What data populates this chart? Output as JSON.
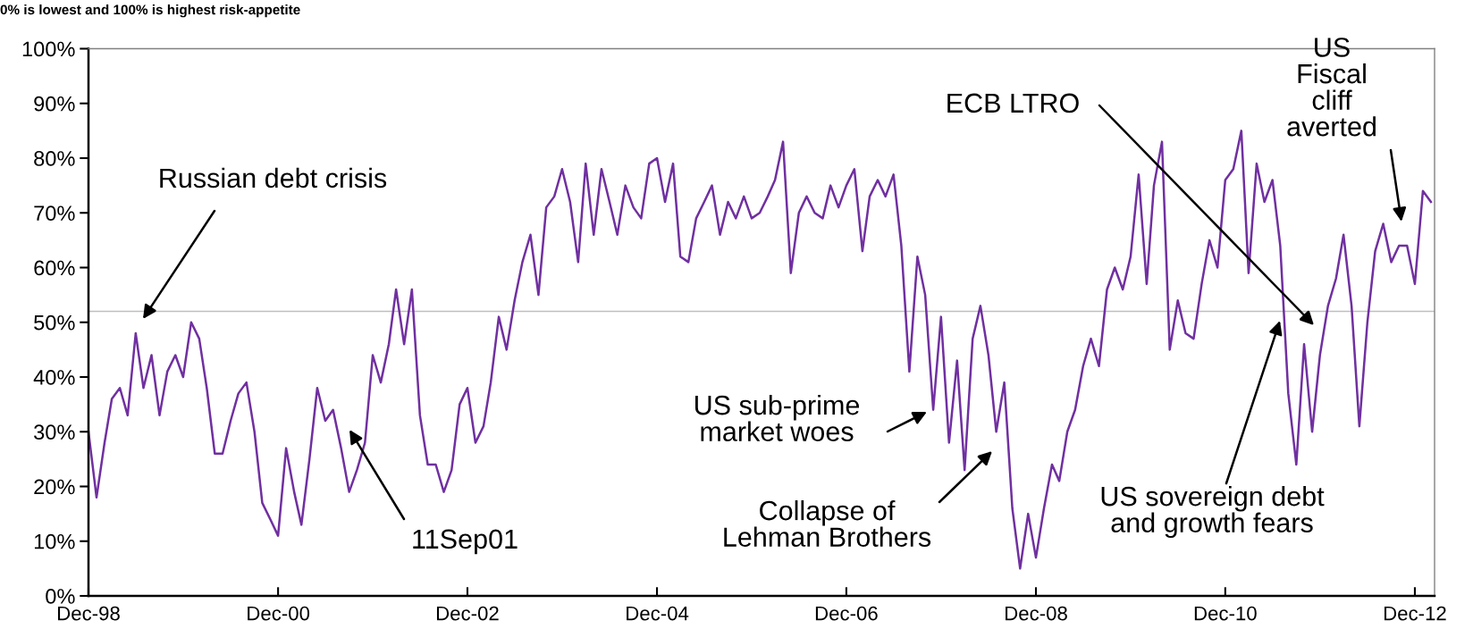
{
  "chart_data": {
    "type": "line",
    "title": "0% is lowest and 100% is highest risk-appetite",
    "x": [
      "1998-12",
      "1999-01",
      "1999-02",
      "1999-03",
      "1999-04",
      "1999-05",
      "1999-06",
      "1999-07",
      "1999-08",
      "1999-09",
      "1999-10",
      "1999-11",
      "1999-12",
      "2000-01",
      "2000-02",
      "2000-03",
      "2000-04",
      "2000-05",
      "2000-06",
      "2000-07",
      "2000-08",
      "2000-09",
      "2000-10",
      "2000-11",
      "2000-12",
      "2001-01",
      "2001-02",
      "2001-03",
      "2001-04",
      "2001-05",
      "2001-06",
      "2001-07",
      "2001-08",
      "2001-09",
      "2001-10",
      "2001-11",
      "2001-12",
      "2002-01",
      "2002-02",
      "2002-03",
      "2002-04",
      "2002-05",
      "2002-06",
      "2002-07",
      "2002-08",
      "2002-09",
      "2002-10",
      "2002-11",
      "2002-12",
      "2003-01",
      "2003-02",
      "2003-03",
      "2003-04",
      "2003-05",
      "2003-06",
      "2003-07",
      "2003-08",
      "2003-09",
      "2003-10",
      "2003-11",
      "2003-12",
      "2004-01",
      "2004-02",
      "2004-03",
      "2004-04",
      "2004-05",
      "2004-06",
      "2004-07",
      "2004-08",
      "2004-09",
      "2004-10",
      "2004-11",
      "2004-12",
      "2005-01",
      "2005-02",
      "2005-03",
      "2005-04",
      "2005-05",
      "2005-06",
      "2005-07",
      "2005-08",
      "2005-09",
      "2005-10",
      "2005-11",
      "2005-12",
      "2006-01",
      "2006-02",
      "2006-03",
      "2006-04",
      "2006-05",
      "2006-06",
      "2006-07",
      "2006-08",
      "2006-09",
      "2006-10",
      "2006-11",
      "2006-12",
      "2007-01",
      "2007-02",
      "2007-03",
      "2007-04",
      "2007-05",
      "2007-06",
      "2007-07",
      "2007-08",
      "2007-09",
      "2007-10",
      "2007-11",
      "2007-12",
      "2008-01",
      "2008-02",
      "2008-03",
      "2008-04",
      "2008-05",
      "2008-06",
      "2008-07",
      "2008-08",
      "2008-09",
      "2008-10",
      "2008-11",
      "2008-12",
      "2009-01",
      "2009-02",
      "2009-03",
      "2009-04",
      "2009-05",
      "2009-06",
      "2009-07",
      "2009-08",
      "2009-09",
      "2009-10",
      "2009-11",
      "2009-12",
      "2010-01",
      "2010-02",
      "2010-03",
      "2010-04",
      "2010-05",
      "2010-06",
      "2010-07",
      "2010-08",
      "2010-09",
      "2010-10",
      "2010-11",
      "2010-12",
      "2011-01",
      "2011-02",
      "2011-03",
      "2011-04",
      "2011-05",
      "2011-06",
      "2011-07",
      "2011-08",
      "2011-09",
      "2011-10",
      "2011-11",
      "2011-12",
      "2012-01",
      "2012-02",
      "2012-03",
      "2012-04",
      "2012-05",
      "2012-06",
      "2012-07",
      "2012-08",
      "2012-09",
      "2012-10",
      "2012-11",
      "2012-12",
      "2013-01",
      "2013-02"
    ],
    "series": [
      {
        "color": "#7030a0",
        "values": [
          30,
          18,
          28,
          36,
          38,
          33,
          48,
          38,
          44,
          33,
          41,
          44,
          40,
          50,
          47,
          38,
          26,
          26,
          32,
          37,
          39,
          30,
          17,
          14,
          11,
          27,
          19,
          13,
          25,
          38,
          32,
          34,
          27,
          19,
          23,
          28,
          44,
          39,
          46,
          56,
          46,
          56,
          33,
          24,
          24,
          19,
          23,
          35,
          38,
          28,
          31,
          39,
          51,
          45,
          54,
          61,
          66,
          55,
          71,
          73,
          78,
          72,
          61,
          79,
          66,
          78,
          72,
          66,
          75,
          71,
          69,
          79,
          80,
          72,
          79,
          62,
          61,
          69,
          72,
          75,
          66,
          72,
          69,
          73,
          69,
          70,
          73,
          76,
          83,
          59,
          70,
          73,
          70,
          69,
          75,
          71,
          75,
          78,
          63,
          73,
          76,
          73,
          77,
          64,
          41,
          62,
          55,
          34,
          51,
          28,
          43,
          23,
          47,
          53,
          44,
          30,
          39,
          16,
          5,
          15,
          7,
          16,
          24,
          21,
          30,
          34,
          42,
          47,
          42,
          56,
          60,
          56,
          62,
          77,
          57,
          75,
          83,
          45,
          54,
          48,
          47,
          57,
          65,
          60,
          76,
          78,
          85,
          59,
          79,
          72,
          76,
          64,
          37,
          24,
          46,
          30,
          44,
          53,
          58,
          66,
          53,
          31,
          50,
          63,
          68,
          61,
          64,
          64,
          57,
          74,
          72
        ]
      }
    ],
    "xlim": [
      "1998-12",
      "2013-02-15"
    ],
    "xticks": [
      {
        "value": "1998-12",
        "label": "Dec-98"
      },
      {
        "value": "2000-12",
        "label": "Dec-00"
      },
      {
        "value": "2002-12",
        "label": "Dec-02"
      },
      {
        "value": "2004-12",
        "label": "Dec-04"
      },
      {
        "value": "2006-12",
        "label": "Dec-06"
      },
      {
        "value": "2008-12",
        "label": "Dec-08"
      },
      {
        "value": "2010-12",
        "label": "Dec-10"
      },
      {
        "value": "2012-12",
        "label": "Dec-12"
      }
    ],
    "ylim": [
      0,
      100
    ],
    "yticks": [
      {
        "value": 0,
        "label": "0%"
      },
      {
        "value": 10,
        "label": "10%"
      },
      {
        "value": 20,
        "label": "20%"
      },
      {
        "value": 30,
        "label": "30%"
      },
      {
        "value": 40,
        "label": "40%"
      },
      {
        "value": 50,
        "label": "50%"
      },
      {
        "value": 60,
        "label": "60%"
      },
      {
        "value": 70,
        "label": "70%"
      },
      {
        "value": 80,
        "label": "80%"
      },
      {
        "value": 90,
        "label": "90%"
      },
      {
        "value": 100,
        "label": "100%"
      }
    ],
    "ref_lines": [
      {
        "axis": "y",
        "value": 52,
        "color": "#bfbfbf"
      }
    ],
    "annotations": [
      "Russian debt crisis",
      "11Sep01",
      "US sub-prime\nmarket woes",
      "Collapse of\nLehman Brothers",
      "ECB LTRO",
      "US sovereign debt\nand growth fears",
      "US\nFiscal\ncliff\naverted"
    ]
  }
}
